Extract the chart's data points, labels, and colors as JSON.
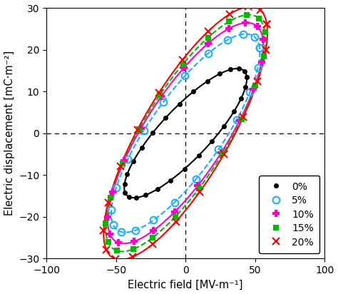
{
  "xlabel": "Electric field [MV-m⁻¹]",
  "ylabel": "Electric displacement [mC·m⁻²]",
  "xlim": [
    -100,
    100
  ],
  "ylim": [
    -30,
    30
  ],
  "xticks": [
    -100,
    -50,
    0,
    50,
    100
  ],
  "yticks": [
    -30,
    -20,
    -10,
    0,
    10,
    20,
    30
  ],
  "series": [
    {
      "label": "0%",
      "color": "black",
      "linestyle": "-",
      "marker": "o",
      "markersize": 3.5,
      "linewidth": 1.5,
      "fillstyle": "full",
      "a": 46,
      "b": 8,
      "tilt_deg": 17,
      "n_markers": 28
    },
    {
      "label": "5%",
      "color": "#1ab0ff",
      "linestyle": "--",
      "marker": "o",
      "markersize": 7,
      "linewidth": 1.5,
      "fillstyle": "none",
      "a": 57,
      "b": 13,
      "tilt_deg": 21,
      "n_markers": 22
    },
    {
      "label": "10%",
      "color": "#ff00cc",
      "linestyle": "-",
      "marker": "P",
      "markersize": 6,
      "linewidth": 1.5,
      "fillstyle": "full",
      "a": 60,
      "b": 15,
      "tilt_deg": 22,
      "n_markers": 22
    },
    {
      "label": "15%",
      "color": "#00bb00",
      "linestyle": "--",
      "marker": "s",
      "markersize": 5,
      "linewidth": 1.5,
      "fillstyle": "full",
      "a": 62,
      "b": 16,
      "tilt_deg": 23,
      "n_markers": 22
    },
    {
      "label": "20%",
      "color": "red",
      "linestyle": "-",
      "marker": "x",
      "markersize": 7,
      "linewidth": 1.5,
      "fillstyle": "full",
      "a": 64,
      "b": 17,
      "tilt_deg": 24,
      "n_markers": 22
    }
  ],
  "legend_loc": "lower right",
  "background": "white"
}
